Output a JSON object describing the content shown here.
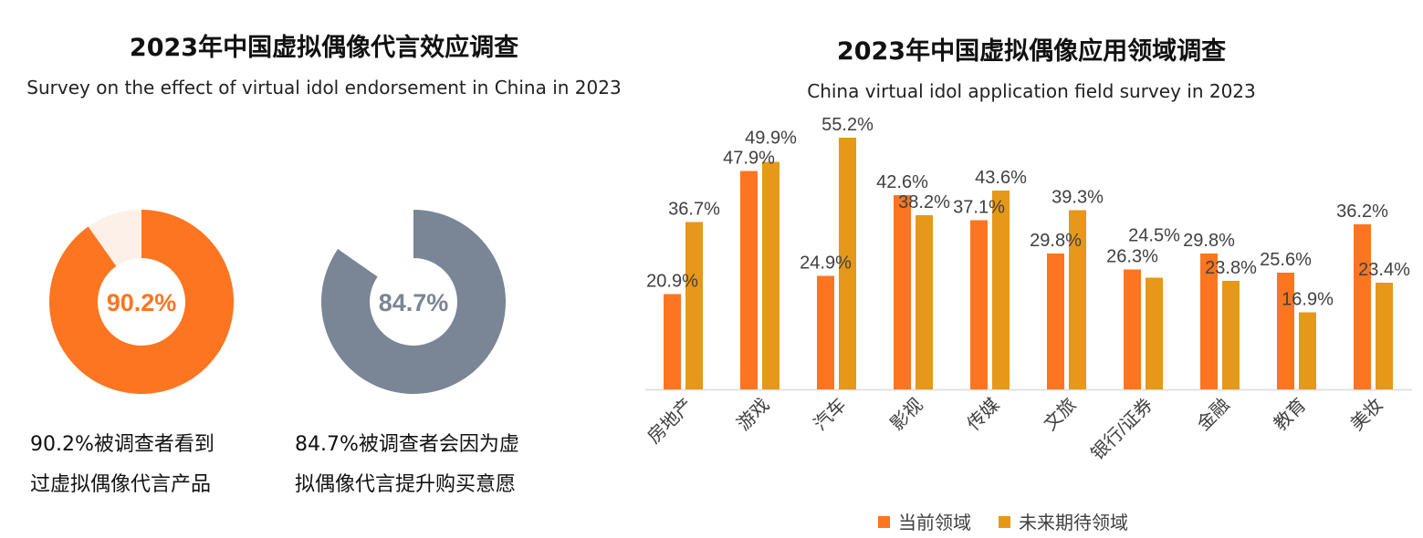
{
  "left": {
    "title": "2023年中国虚拟偶像代言效应调查",
    "subtitle": "Survey on the effect of virtual idol endorsement in China in 2023",
    "donuts": [
      {
        "value": 90.2,
        "label": "90.2%",
        "color": "#fd7520",
        "rest_color": "#fdf0e8",
        "caption": [
          "90.2%被调查者看到",
          "过虚拟偶像代言产品"
        ]
      },
      {
        "value": 84.7,
        "label": "84.7%",
        "color": "#7a8596",
        "rest_color": "#ffffff",
        "caption": [
          "84.7%被调查者会因为虚",
          "拟偶像代言提升购买意愿"
        ]
      }
    ]
  },
  "chart_data": {
    "type": "bar",
    "title": "2023年中国虚拟偶像应用领域调查",
    "subtitle": "China virtual idol application field survey in 2023",
    "categories": [
      "房地产",
      "游戏",
      "汽车",
      "影视",
      "传媒",
      "文旅",
      "银行/证券",
      "金融",
      "教育",
      "美妆"
    ],
    "series": [
      {
        "name": "当前领域",
        "color": "#fd7520",
        "values": [
          20.9,
          47.9,
          24.9,
          42.6,
          37.1,
          29.8,
          26.3,
          29.8,
          25.6,
          36.2
        ]
      },
      {
        "name": "未来期待领域",
        "color": "#e69818",
        "values": [
          36.7,
          49.9,
          55.2,
          38.2,
          43.6,
          39.3,
          24.5,
          23.8,
          16.9,
          23.4
        ]
      }
    ],
    "value_format": "%",
    "ylim": [
      0,
      60
    ],
    "grid": false,
    "legend": "bottom"
  }
}
